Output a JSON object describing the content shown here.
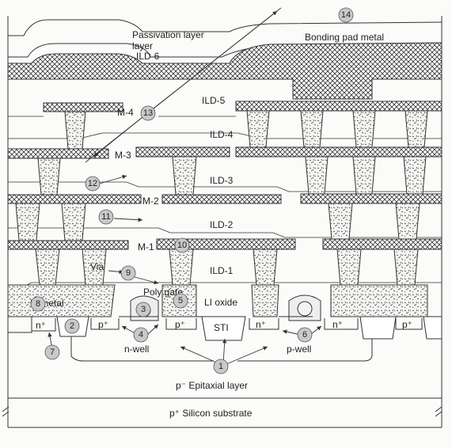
{
  "layers": {
    "passivation": "Passivation layer",
    "bonding_pad": "Bonding pad metal",
    "ild6": "ILD-6",
    "ild5": "ILD-5",
    "ild4": "ILD-4",
    "ild3": "ILD-3",
    "ild2": "ILD-2",
    "ild1": "ILD-1",
    "m4": "M-4",
    "m3": "M-3",
    "m2": "M-2",
    "m1": "M-1",
    "via": "Via",
    "poly_gate": "Poly gate",
    "li_metal": "LI metal",
    "li_oxide": "LI oxide",
    "sti": "STI",
    "n_well": "n-well",
    "p_well": "p-well",
    "epitaxial": "p⁻ Epitaxial layer",
    "substrate": "p⁺ Silicon substrate"
  },
  "dopants": {
    "n_plus": "n⁺",
    "p_plus": "p⁺"
  },
  "markers": [
    "1",
    "2",
    "3",
    "4",
    "5",
    "6",
    "7",
    "8",
    "9",
    "10",
    "11",
    "12",
    "13",
    "14"
  ],
  "colors": {
    "line": "#2a2a2a",
    "marker_fill": "#c9c9c9",
    "via_fill": "#f4f4f2"
  }
}
